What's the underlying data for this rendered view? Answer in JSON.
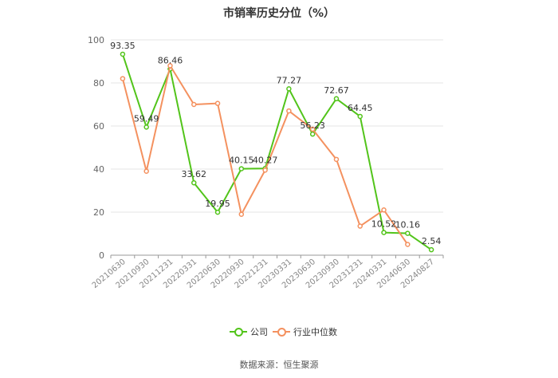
{
  "title": "市销率历史分位（%）",
  "source": "数据来源：恒生聚源",
  "colors": {
    "company": "#52c41a",
    "industry": "#f4915f",
    "grid": "#e6e6e6",
    "axis": "#999999"
  },
  "legend": [
    {
      "label": "公司",
      "color": "#52c41a"
    },
    {
      "label": "行业中位数",
      "color": "#f4915f"
    }
  ],
  "chart_data": {
    "type": "line",
    "title": "市销率历史分位（%）",
    "xlabel": "",
    "ylabel": "",
    "ylim": [
      0,
      100
    ],
    "yticks": [
      0,
      20,
      40,
      60,
      80,
      100
    ],
    "grid": true,
    "legend_position": "bottom",
    "categories": [
      "20210630",
      "20210930",
      "20211231",
      "20220331",
      "20220630",
      "20220930",
      "20221231",
      "20230331",
      "20230630",
      "20230930",
      "20231231",
      "20240331",
      "20240630",
      "20240827"
    ],
    "series": [
      {
        "name": "公司",
        "color": "#52c41a",
        "values": [
          93.35,
          59.49,
          86.46,
          33.62,
          19.95,
          40.15,
          40.27,
          77.27,
          56.23,
          72.67,
          64.45,
          10.52,
          10.16,
          2.54
        ],
        "labels": [
          "93.35",
          "59.49",
          "86.46",
          "33.62",
          "19.95",
          "40.15",
          "40.27",
          "77.27",
          "56.23",
          "72.67",
          "64.45",
          "10.52",
          "10.16",
          "2.54"
        ]
      },
      {
        "name": "行业中位数",
        "color": "#f4915f",
        "values": [
          82,
          39,
          88,
          70,
          70.5,
          19,
          39.5,
          67,
          58.5,
          44.5,
          13.5,
          21,
          5,
          null
        ]
      }
    ]
  }
}
